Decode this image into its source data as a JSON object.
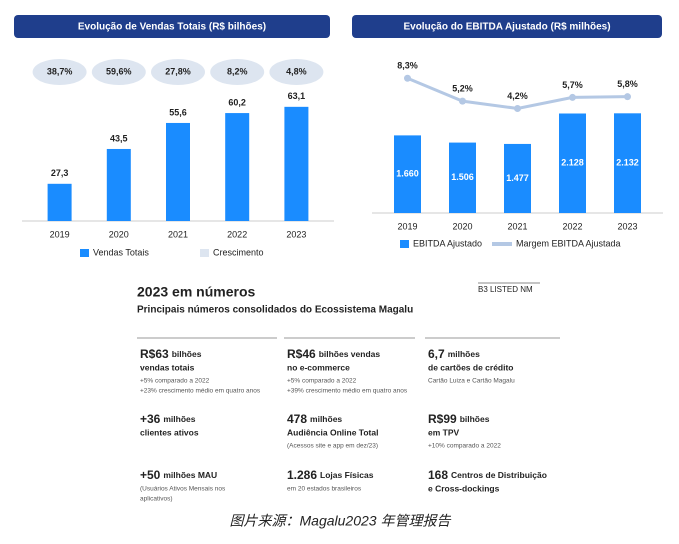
{
  "chart_data": [
    {
      "type": "bar",
      "title": "Evolução de Vendas Totais (R$ bilhões)",
      "categories": [
        "2019",
        "2020",
        "2021",
        "2022",
        "2023"
      ],
      "series": [
        {
          "name": "Vendas Totais",
          "color": "#1a8cff",
          "values": [
            27.3,
            43.5,
            55.6,
            60.2,
            63.1
          ],
          "value_labels": [
            "27,3",
            "43,5",
            "55,6",
            "60,2",
            "63,1"
          ]
        }
      ],
      "growth": {
        "name": "Crescimento",
        "color": "#dde5f0",
        "values": [
          38.7,
          59.6,
          27.8,
          8.2,
          4.8
        ],
        "value_labels": [
          "38,7%",
          "59,6%",
          "27,8%",
          "8,2%",
          "4,8%"
        ]
      },
      "ylim": [
        10,
        70
      ],
      "label_position": "above"
    },
    {
      "type": "combo",
      "title": "Evolução do EBITDA Ajustado (R$ milhões)",
      "categories": [
        "2019",
        "2020",
        "2021",
        "2022",
        "2023"
      ],
      "series": [
        {
          "name": "EBITDA Ajustado",
          "color": "#1a8cff",
          "values": [
            1660,
            1506,
            1477,
            2128,
            2132
          ],
          "value_labels": [
            "1.660",
            "1.506",
            "1.477",
            "2.128",
            "2.132"
          ]
        },
        {
          "name": "Margem EBITDA Ajustada",
          "type": "line",
          "axis": "y2",
          "color": "#b4c8e4",
          "values": [
            8.3,
            5.2,
            4.2,
            5.7,
            5.8
          ],
          "value_labels": [
            "8,3%",
            "5,2%",
            "4,2%",
            "5,7%",
            "5,8%"
          ]
        }
      ],
      "ylim": [
        0,
        3700
      ],
      "y2lim": [
        -10,
        13.5
      ],
      "label_position": "inside"
    }
  ],
  "document": {
    "title": "2023 em números",
    "subtitle": "Principais números consolidados do Ecossistema Magalu",
    "badge": "B3 LISTED NM",
    "cells": [
      {
        "figure": "R$63",
        "unit": "bilhões",
        "line2": "vendas totais",
        "notes": [
          "+5% comparado a 2022",
          "+23% crescimento médio em quatro anos"
        ]
      },
      {
        "figure": "R$46",
        "unit": "bilhões vendas",
        "line2": "no e-commerce",
        "notes": [
          "+5% comparado a 2022",
          "+39% crescimento médio em quatro anos"
        ]
      },
      {
        "figure": "6,7",
        "unit": "milhões",
        "line2": "de cartões de crédito",
        "notes": [
          "Cartão Luiza e Cartão Magalu"
        ]
      },
      {
        "figure": "+36",
        "unit": "milhões",
        "line2": "clientes ativos"
      },
      {
        "figure": "478",
        "unit": "milhões",
        "line2": "Audiência Online Total",
        "notes": [
          "(Acessos site e app em dez/23)"
        ]
      },
      {
        "figure": "R$99",
        "unit": "bilhões",
        "line2": "em TPV",
        "notes": [
          "+10% comparado a 2022"
        ]
      },
      {
        "figure": "+50",
        "unit": "milhões MAU",
        "notes": [
          "(Usuários Ativos Mensais nos",
          "aplicativos)"
        ]
      },
      {
        "figure": "1.286",
        "unit": "Lojas Físicas",
        "notes": [
          "em 20 estados brasileiros"
        ]
      },
      {
        "figure": "168",
        "unit": "Centros de Distribuição",
        "line2": "e Cross-dockings"
      }
    ],
    "caption": "图片来源：Magalu2023 年管理报告"
  }
}
